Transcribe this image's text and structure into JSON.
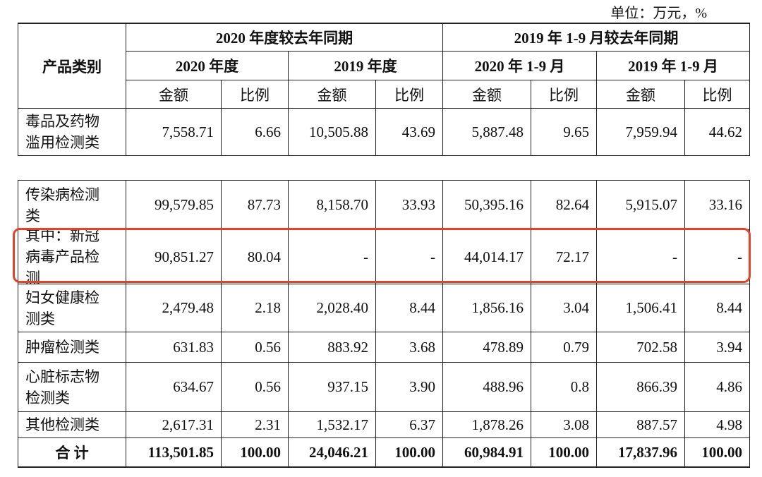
{
  "unit": "单位：万元，%",
  "table": {
    "header": {
      "category": "产品类别",
      "groups": [
        {
          "title": "2020 年度较去年同期",
          "periods": [
            {
              "title": "2020 年度",
              "columns": [
                "金额",
                "比例"
              ]
            },
            {
              "title": "2019 年度",
              "columns": [
                "金额",
                "比例"
              ]
            }
          ]
        },
        {
          "title": "2019 年 1-9 月较去年同期",
          "periods": [
            {
              "title": "2020 年 1-9 月",
              "columns": [
                "金额",
                "比例"
              ]
            },
            {
              "title": "2019 年 1-9 月",
              "columns": [
                "金额",
                "比例"
              ]
            }
          ]
        }
      ]
    },
    "rows": [
      [
        "毒品及药物滥用检测类",
        "7,558.71",
        "6.66",
        "10,505.88",
        "43.69",
        "5,887.48",
        "9.65",
        "7,959.94",
        "44.62"
      ],
      [
        "传染病检测类",
        "99,579.85",
        "87.73",
        "8,158.70",
        "33.93",
        "50,395.16",
        "82.64",
        "5,915.07",
        "33.16"
      ],
      [
        "其中：新冠病毒产品检测",
        "90,851.27",
        "80.04",
        "-",
        "-",
        "44,014.17",
        "72.17",
        "-",
        "-"
      ],
      [
        "妇女健康检测类",
        "2,479.48",
        "2.18",
        "2,028.40",
        "8.44",
        "1,856.16",
        "3.04",
        "1,506.41",
        "8.44"
      ],
      [
        "肿瘤检测类",
        "631.83",
        "0.56",
        "883.92",
        "3.68",
        "478.89",
        "0.79",
        "702.58",
        "3.94"
      ],
      [
        "心脏标志物检测类",
        "634.67",
        "0.56",
        "937.15",
        "3.90",
        "488.96",
        "0.8",
        "866.39",
        "4.86"
      ],
      [
        "其他检测类",
        "2,617.31",
        "2.31",
        "1,532.17",
        "6.37",
        "1,878.26",
        "3.08",
        "887.57",
        "4.98"
      ],
      [
        "合 计",
        "113,501.85",
        "100.00",
        "24,046.21",
        "100.00",
        "60,984.91",
        "100.00",
        "17,837.96",
        "100.00"
      ]
    ]
  }
}
